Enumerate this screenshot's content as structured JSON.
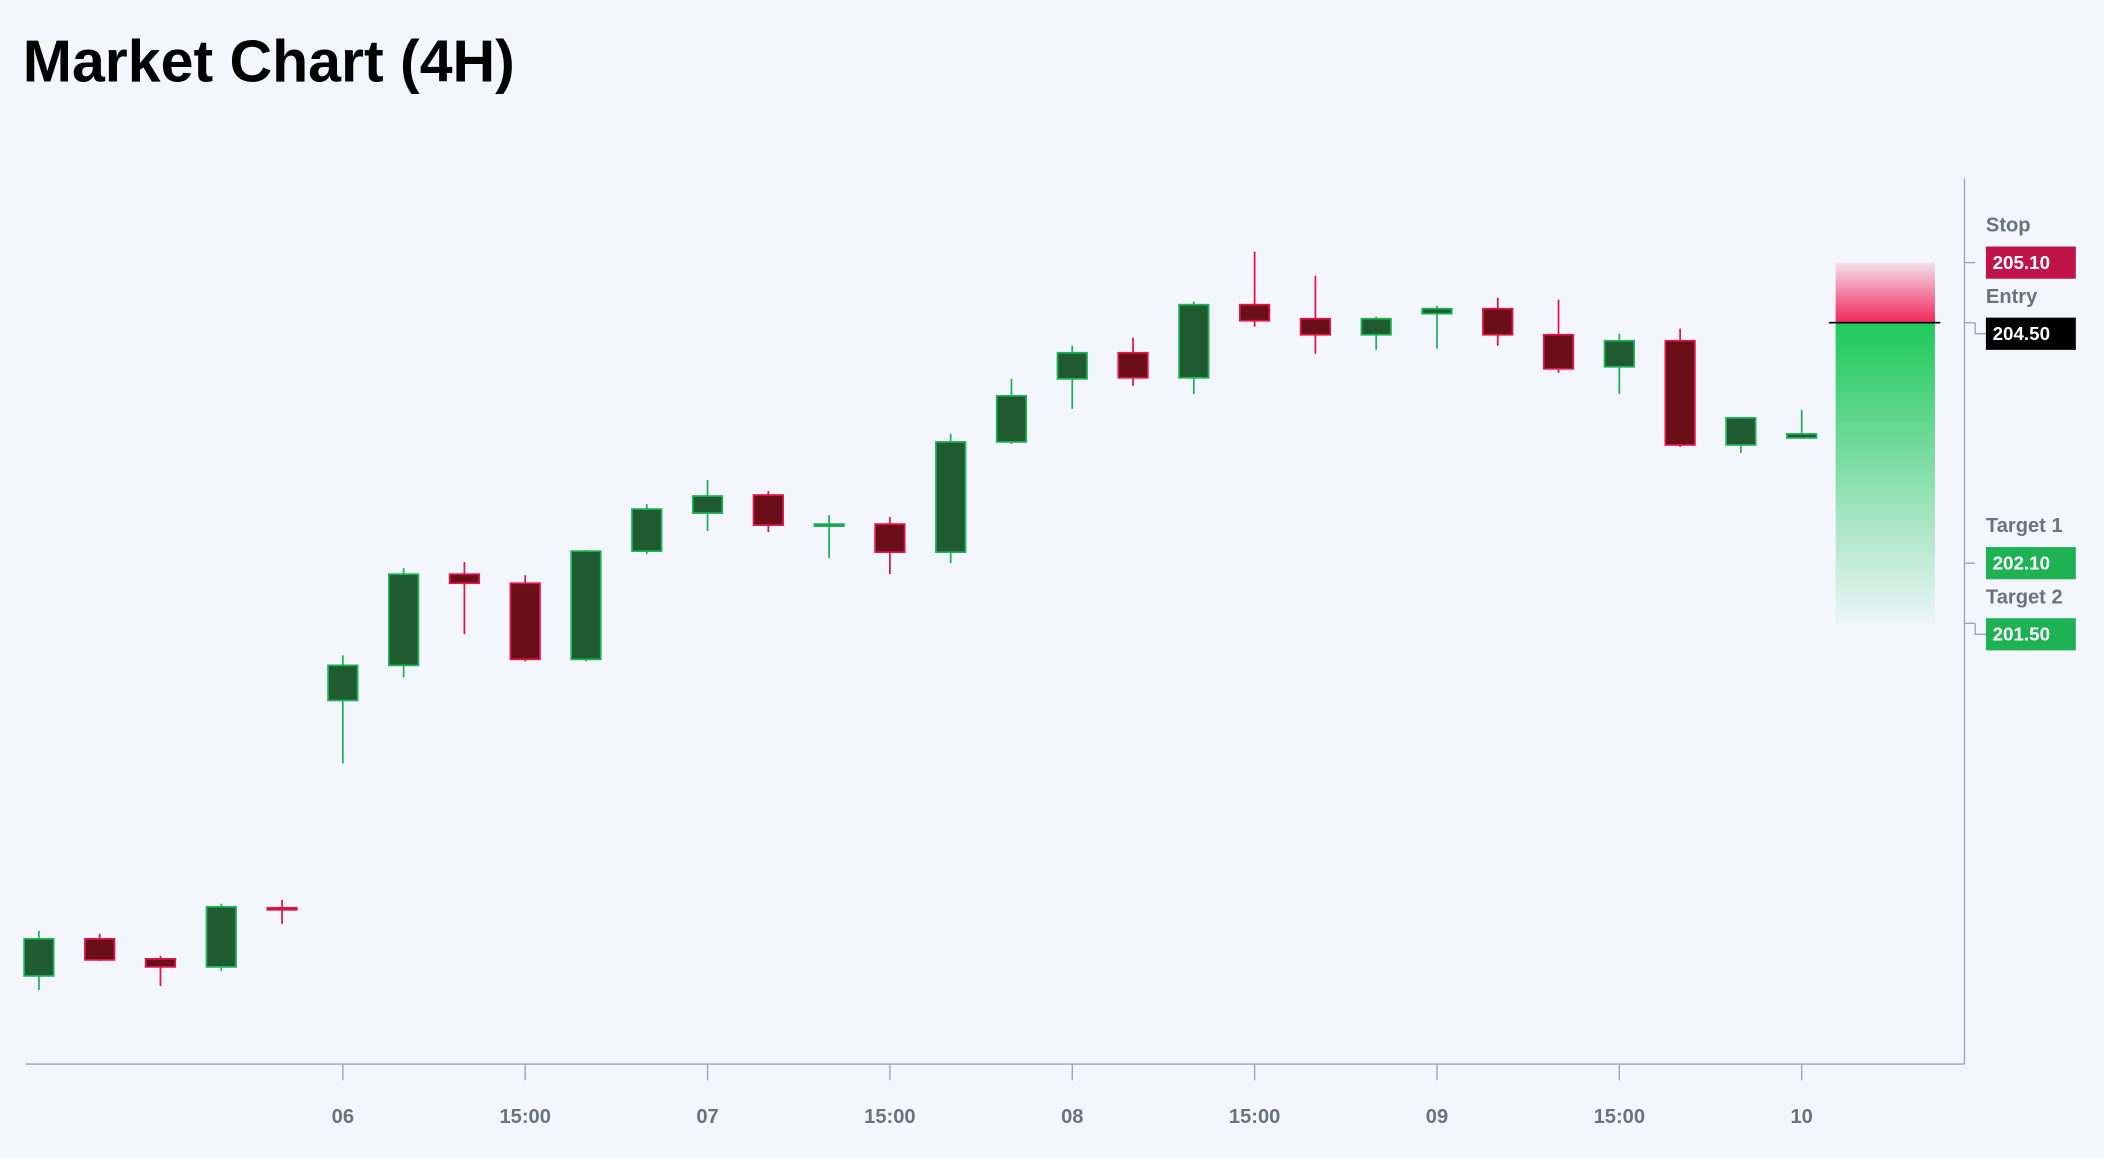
{
  "header": {
    "title": "Market Chart (4H)"
  },
  "chart_data": {
    "type": "candlestick",
    "categories": [
      null,
      null,
      null,
      null,
      null,
      "06",
      null,
      null,
      "15:00",
      null,
      null,
      "07",
      null,
      null,
      "15:00",
      null,
      null,
      "08",
      null,
      null,
      "15:00",
      null,
      null,
      "09",
      null,
      null,
      "15:00",
      null,
      null,
      "10"
    ],
    "open": [
      197.98,
      198.35,
      198.15,
      198.07,
      198.66,
      200.73,
      201.08,
      201.99,
      201.9,
      201.14,
      202.22,
      202.6,
      202.78,
      202.48,
      202.49,
      202.21,
      203.31,
      203.94,
      204.2,
      203.95,
      204.68,
      204.54,
      204.38,
      204.59,
      204.64,
      204.38,
      204.06,
      204.32,
      203.28,
      203.35
    ],
    "high": [
      198.43,
      198.4,
      198.18,
      198.7,
      198.74,
      201.18,
      202.05,
      202.11,
      201.98,
      202.23,
      202.69,
      202.93,
      202.82,
      202.58,
      202.56,
      203.39,
      203.94,
      204.27,
      204.35,
      204.71,
      205.21,
      204.97,
      204.56,
      204.67,
      204.75,
      204.73,
      204.39,
      204.44,
      203.56,
      203.63
    ],
    "low": [
      197.84,
      198.13,
      197.88,
      198.03,
      198.5,
      200.1,
      200.96,
      201.39,
      201.12,
      201.12,
      202.19,
      202.42,
      202.41,
      202.15,
      201.99,
      202.1,
      203.29,
      203.64,
      203.87,
      203.79,
      204.46,
      204.19,
      204.23,
      204.24,
      204.27,
      204.0,
      203.79,
      203.26,
      203.2,
      203.35
    ],
    "close": [
      198.35,
      198.14,
      198.07,
      198.67,
      198.64,
      201.08,
      201.99,
      201.9,
      201.14,
      202.22,
      202.64,
      202.77,
      202.48,
      202.49,
      202.21,
      203.31,
      203.77,
      204.2,
      203.95,
      204.68,
      204.52,
      204.38,
      204.54,
      204.64,
      204.38,
      204.04,
      204.32,
      203.28,
      203.55,
      203.39
    ],
    "ylim": [
      197.1,
      205.94
    ],
    "colors": {
      "up_body": "#1f5a30",
      "up_line": "#1fb255",
      "down_body": "#6a0e18",
      "down_line": "#e0164a"
    },
    "levels": {
      "names": [
        "Stop",
        "Entry",
        "Target 1",
        "Target 2"
      ],
      "values": [
        205.1,
        204.5,
        202.1,
        201.5
      ],
      "value_labels": [
        "205.10",
        "204.50",
        "202.10",
        "201.50"
      ],
      "colors": [
        "#c0134a",
        "#000000",
        "#1fb255",
        "#1fb255"
      ]
    }
  }
}
